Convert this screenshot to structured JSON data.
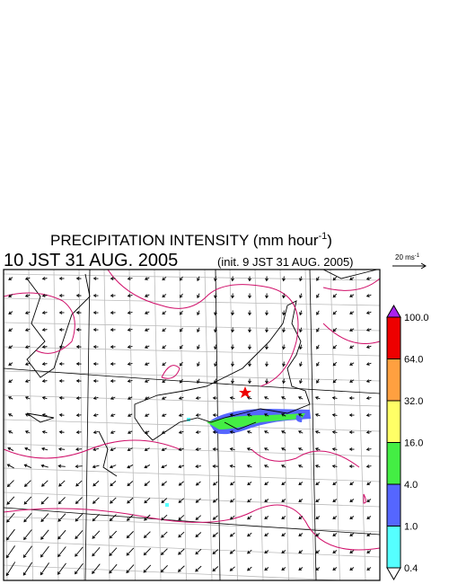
{
  "title": {
    "text": "PRECIPITATION INTENSITY (mm hour",
    "sup": "-1",
    "end": ")"
  },
  "time": "10 JST 31 AUG. 2005",
  "init": "(init. 9 JST 31 AUG. 2005)",
  "scale": {
    "text": "20 ms",
    "sup": "-1"
  },
  "colorbar": {
    "labels": [
      "100.0",
      "64.0",
      "32.0",
      "16.0",
      "4.0",
      "1.0",
      "0.4"
    ],
    "colors": [
      "#ee0000",
      "#ffa040",
      "#ffff66",
      "#44ee44",
      "#5566ff",
      "#55ffff"
    ],
    "over_color": "#aa22ee",
    "under_color": "#ffffff"
  }
}
